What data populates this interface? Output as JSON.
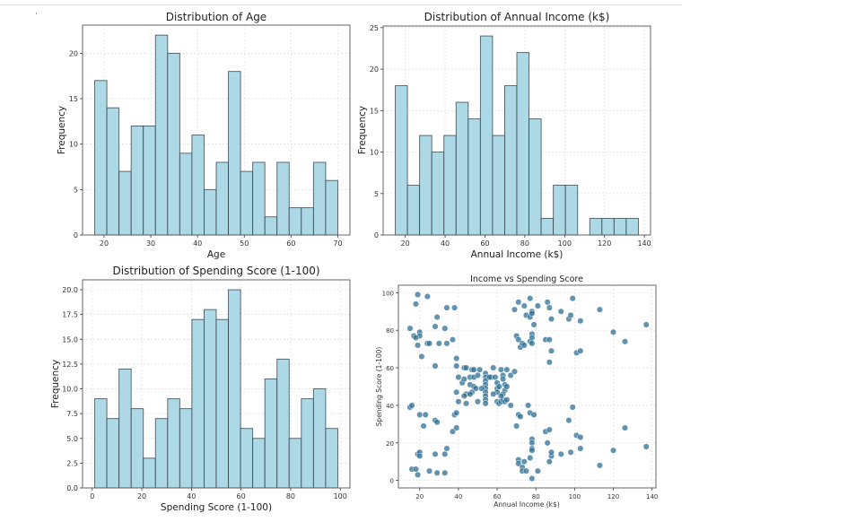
{
  "chart_data": [
    {
      "type": "bar",
      "title": "Distribution of Age",
      "xlabel": "Age",
      "ylabel": "Frequency",
      "bin_range": [
        18,
        70
      ],
      "values": [
        17,
        14,
        7,
        12,
        12,
        22,
        20,
        9,
        11,
        5,
        8,
        18,
        7,
        8,
        2,
        8,
        3,
        3,
        8,
        6
      ],
      "xticks": [
        20,
        30,
        40,
        50,
        60,
        70
      ],
      "yticks": [
        0,
        5,
        10,
        15,
        20
      ],
      "xlim": [
        15.4,
        72.6
      ],
      "ylim": [
        0,
        23.1
      ],
      "grid": true,
      "color": "#add8e6"
    },
    {
      "type": "bar",
      "title": "Distribution of Annual Income (k$)",
      "xlabel": "Annual Income (k$)",
      "ylabel": "Frequency",
      "bin_range": [
        15,
        137
      ],
      "values": [
        18,
        6,
        12,
        10,
        12,
        16,
        14,
        24,
        12,
        18,
        22,
        14,
        2,
        6,
        6,
        0,
        2,
        2,
        2,
        2
      ],
      "xticks": [
        20,
        40,
        60,
        80,
        100,
        120,
        140
      ],
      "yticks": [
        0,
        5,
        10,
        15,
        20,
        25
      ],
      "xlim": [
        8.9,
        143.1
      ],
      "ylim": [
        0,
        25.2
      ],
      "grid": true,
      "color": "#add8e6"
    },
    {
      "type": "bar",
      "title": "Distribution of Spending Score (1-100)",
      "xlabel": "Spending Score (1-100)",
      "ylabel": "Frequency",
      "bin_range": [
        1,
        99
      ],
      "values": [
        9,
        7,
        12,
        8,
        3,
        7,
        9,
        8,
        17,
        18,
        17,
        20,
        6,
        5,
        11,
        13,
        5,
        9,
        10,
        6
      ],
      "xticks": [
        0,
        20,
        40,
        60,
        80,
        100
      ],
      "yticks": [
        "0.0",
        "2.5",
        "5.0",
        "7.5",
        "10.0",
        "12.5",
        "15.0",
        "17.5",
        "20.0"
      ],
      "xlim": [
        -3.9,
        103.9
      ],
      "ylim": [
        0,
        21
      ],
      "grid": true,
      "color": "#add8e6"
    },
    {
      "type": "scatter",
      "title": "Income vs Spending Score",
      "xlabel": "Annual Income (k$)",
      "ylabel": "Spending Score (1-100)",
      "xticks": [
        20,
        40,
        60,
        80,
        100,
        120,
        140
      ],
      "yticks": [
        0,
        20,
        40,
        60,
        80,
        100
      ],
      "xlim": [
        9,
        142
      ],
      "ylim": [
        -4,
        104
      ],
      "grid": true,
      "color": "#2f6f93",
      "points": [
        [
          19,
          99
        ],
        [
          24,
          98
        ],
        [
          18,
          94
        ],
        [
          34,
          92
        ],
        [
          38,
          92
        ],
        [
          29,
          87
        ],
        [
          15,
          81
        ],
        [
          20,
          79
        ],
        [
          20,
          77
        ],
        [
          17,
          77
        ],
        [
          18,
          76
        ],
        [
          19,
          72
        ],
        [
          24,
          73
        ],
        [
          25,
          73
        ],
        [
          28,
          82
        ],
        [
          33,
          81
        ],
        [
          30,
          73
        ],
        [
          34,
          73
        ],
        [
          37,
          75
        ],
        [
          21,
          66
        ],
        [
          28,
          61
        ],
        [
          39,
          65
        ],
        [
          39,
          61
        ],
        [
          43,
          60
        ],
        [
          44,
          60
        ],
        [
          47,
          59
        ],
        [
          48,
          59
        ],
        [
          40,
          55
        ],
        [
          42,
          52
        ],
        [
          43,
          54
        ],
        [
          46,
          55
        ],
        [
          48,
          55
        ],
        [
          50,
          56
        ],
        [
          46,
          51
        ],
        [
          48,
          50
        ],
        [
          47,
          47
        ],
        [
          44,
          46
        ],
        [
          43,
          45
        ],
        [
          49,
          49
        ],
        [
          50,
          42
        ],
        [
          39,
          47
        ],
        [
          40,
          42
        ],
        [
          44,
          41
        ],
        [
          46,
          46
        ],
        [
          54,
          57
        ],
        [
          54,
          55
        ],
        [
          54,
          53
        ],
        [
          54,
          51
        ],
        [
          54,
          49
        ],
        [
          54,
          47
        ],
        [
          54,
          45
        ],
        [
          54,
          43
        ],
        [
          54,
          41
        ],
        [
          57,
          55
        ],
        [
          58,
          60
        ],
        [
          59,
          55
        ],
        [
          60,
          52
        ],
        [
          60,
          49
        ],
        [
          60,
          47
        ],
        [
          58,
          46
        ],
        [
          60,
          42
        ],
        [
          61,
          41
        ],
        [
          62,
          42
        ],
        [
          63,
          43
        ],
        [
          64,
          42
        ],
        [
          65,
          43
        ],
        [
          62,
          59
        ],
        [
          63,
          56
        ],
        [
          63,
          54
        ],
        [
          64,
          51
        ],
        [
          64,
          48
        ],
        [
          63,
          46
        ],
        [
          65,
          50
        ],
        [
          65,
          59
        ],
        [
          67,
          56
        ],
        [
          69,
          58
        ],
        [
          67,
          40
        ],
        [
          61,
          50
        ],
        [
          62,
          45
        ],
        [
          56,
          55
        ],
        [
          52,
          49
        ],
        [
          51,
          59
        ],
        [
          71,
          95
        ],
        [
          69,
          91
        ],
        [
          74,
          93
        ],
        [
          77,
          97
        ],
        [
          75,
          88
        ],
        [
          77,
          87
        ],
        [
          78,
          90
        ],
        [
          78,
          89
        ],
        [
          79,
          83
        ],
        [
          81,
          93
        ],
        [
          86,
          95
        ],
        [
          87,
          92
        ],
        [
          88,
          86
        ],
        [
          93,
          90
        ],
        [
          97,
          86
        ],
        [
          98,
          88
        ],
        [
          99,
          97
        ],
        [
          103,
          85
        ],
        [
          113,
          91
        ],
        [
          70,
          77
        ],
        [
          71,
          75
        ],
        [
          72,
          71
        ],
        [
          73,
          73
        ],
        [
          74,
          72
        ],
        [
          77,
          74
        ],
        [
          78,
          73
        ],
        [
          78,
          78
        ],
        [
          78,
          76
        ],
        [
          85,
          75
        ],
        [
          87,
          75
        ],
        [
          88,
          69
        ],
        [
          87,
          63
        ],
        [
          101,
          68
        ],
        [
          103,
          69
        ],
        [
          120,
          79
        ],
        [
          126,
          74
        ],
        [
          137,
          83
        ],
        [
          15,
          39
        ],
        [
          16,
          40
        ],
        [
          20,
          35
        ],
        [
          23,
          35
        ],
        [
          22,
          29
        ],
        [
          28,
          32
        ],
        [
          29,
          31
        ],
        [
          37,
          26
        ],
        [
          38,
          35
        ],
        [
          39,
          36
        ],
        [
          39,
          28
        ],
        [
          19,
          14
        ],
        [
          20,
          15
        ],
        [
          20,
          13
        ],
        [
          28,
          14
        ],
        [
          33,
          14
        ],
        [
          34,
          17
        ],
        [
          16,
          6
        ],
        [
          18,
          6
        ],
        [
          19,
          3
        ],
        [
          25,
          5
        ],
        [
          29,
          4
        ],
        [
          33,
          4
        ],
        [
          71,
          35
        ],
        [
          72,
          34
        ],
        [
          76,
          40
        ],
        [
          77,
          36
        ],
        [
          79,
          35
        ],
        [
          70,
          29
        ],
        [
          71,
          11
        ],
        [
          71,
          9
        ],
        [
          73,
          7
        ],
        [
          74,
          10
        ],
        [
          73,
          5
        ],
        [
          75,
          5
        ],
        [
          77,
          12
        ],
        [
          78,
          22
        ],
        [
          78,
          20
        ],
        [
          78,
          17
        ],
        [
          78,
          16
        ],
        [
          78,
          1
        ],
        [
          81,
          5
        ],
        [
          85,
          26
        ],
        [
          86,
          20
        ],
        [
          87,
          27
        ],
        [
          87,
          10
        ],
        [
          88,
          13
        ],
        [
          88,
          15
        ],
        [
          93,
          14
        ],
        [
          97,
          32
        ],
        [
          98,
          15
        ],
        [
          99,
          39
        ],
        [
          101,
          24
        ],
        [
          103,
          23
        ],
        [
          103,
          17
        ],
        [
          113,
          8
        ],
        [
          120,
          16
        ],
        [
          126,
          28
        ],
        [
          137,
          18
        ]
      ]
    }
  ]
}
